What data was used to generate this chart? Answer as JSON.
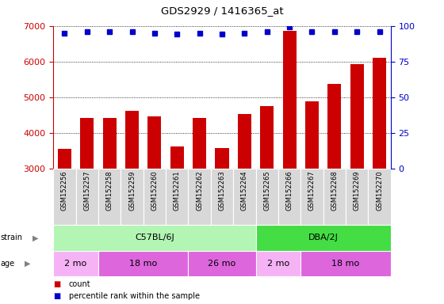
{
  "title": "GDS2929 / 1416365_at",
  "samples": [
    "GSM152256",
    "GSM152257",
    "GSM152258",
    "GSM152259",
    "GSM152260",
    "GSM152261",
    "GSM152262",
    "GSM152263",
    "GSM152264",
    "GSM152265",
    "GSM152266",
    "GSM152267",
    "GSM152268",
    "GSM152269",
    "GSM152270"
  ],
  "counts": [
    3550,
    4430,
    4420,
    4620,
    4470,
    3620,
    4420,
    3580,
    4530,
    4750,
    6850,
    4890,
    5380,
    5920,
    6100
  ],
  "percentile_ranks": [
    95,
    96,
    96,
    96,
    95,
    94,
    95,
    94,
    95,
    96,
    99,
    96,
    96,
    96,
    96
  ],
  "ylim": [
    3000,
    7000
  ],
  "yticks": [
    3000,
    4000,
    5000,
    6000,
    7000
  ],
  "y2ticks": [
    0,
    25,
    50,
    75,
    100
  ],
  "y2lim": [
    0,
    100
  ],
  "bar_color": "#cc0000",
  "dot_color": "#0000cc",
  "strain_c57_color": "#b3f5b3",
  "strain_dba_color": "#44dd44",
  "age_color_light": "#f5b3f5",
  "age_color_dark": "#dd66dd",
  "tick_label_color_left": "#cc0000",
  "tick_label_color_right": "#0000cc",
  "strain_groups": [
    {
      "label": "C57BL/6J",
      "start": 0,
      "end": 9
    },
    {
      "label": "DBA/2J",
      "start": 9,
      "end": 15
    }
  ],
  "age_groups": [
    {
      "label": "2 mo",
      "start": 0,
      "end": 2,
      "dark": false
    },
    {
      "label": "18 mo",
      "start": 2,
      "end": 6,
      "dark": true
    },
    {
      "label": "26 mo",
      "start": 6,
      "end": 9,
      "dark": true
    },
    {
      "label": "2 mo",
      "start": 9,
      "end": 11,
      "dark": false
    },
    {
      "label": "18 mo",
      "start": 11,
      "end": 15,
      "dark": true
    }
  ],
  "legend_items": [
    {
      "color": "#cc0000",
      "label": "count"
    },
    {
      "color": "#0000cc",
      "label": "percentile rank within the sample"
    }
  ]
}
